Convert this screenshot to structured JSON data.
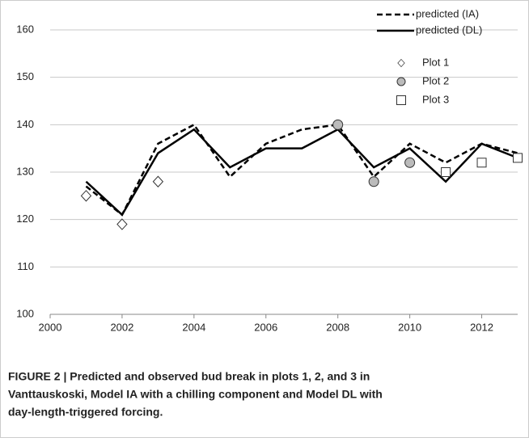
{
  "chart_data": {
    "type": "line",
    "x": [
      2001,
      2002,
      2003,
      2004,
      2005,
      2006,
      2007,
      2008,
      2009,
      2010,
      2011,
      2012,
      2013
    ],
    "series": [
      {
        "name": "predicted (IA)",
        "color": "#000000",
        "style": "dashed",
        "x": [
          2001,
          2002,
          2003,
          2004,
          2005,
          2006,
          2007,
          2008,
          2009,
          2010,
          2011,
          2012,
          2013
        ],
        "values": [
          127,
          121,
          136,
          140,
          129,
          136,
          139,
          140,
          129,
          136,
          132,
          136,
          134
        ]
      },
      {
        "name": "predicted (DL)",
        "color": "#000000",
        "style": "solid",
        "x": [
          2001,
          2002,
          2003,
          2004,
          2005,
          2006,
          2007,
          2008,
          2009,
          2010,
          2011,
          2012,
          2013
        ],
        "values": [
          128,
          121,
          134,
          139,
          131,
          135,
          135,
          139,
          131,
          135,
          128,
          136,
          133
        ]
      },
      {
        "name": "Plot 1",
        "color": "#ffffff",
        "marker": "diamond",
        "x": [
          2001,
          2002,
          2003
        ],
        "values": [
          125,
          119,
          128
        ]
      },
      {
        "name": "Plot 2",
        "color": "#bbbbbb",
        "marker": "circle",
        "x": [
          2008,
          2009,
          2010
        ],
        "values": [
          140,
          128,
          132
        ]
      },
      {
        "name": "Plot 3",
        "color": "#ffffff",
        "marker": "square",
        "x": [
          2011,
          2012,
          2013
        ],
        "values": [
          130,
          132,
          133
        ]
      }
    ],
    "xlim": [
      2000,
      2013
    ],
    "xticks": [
      2000,
      2002,
      2004,
      2006,
      2008,
      2010,
      2012
    ],
    "ylim": [
      100,
      160
    ],
    "yticks": [
      100,
      110,
      120,
      130,
      140,
      150,
      160
    ],
    "grid": true,
    "legend": "upper right",
    "caption": [
      "FIGURE 2 | Predicted and observed bud break in plots 1, 2, and 3 in",
      "Vanttauskoski, Model IA with a chilling component and Model DL with",
      "day-length-triggered forcing."
    ]
  }
}
